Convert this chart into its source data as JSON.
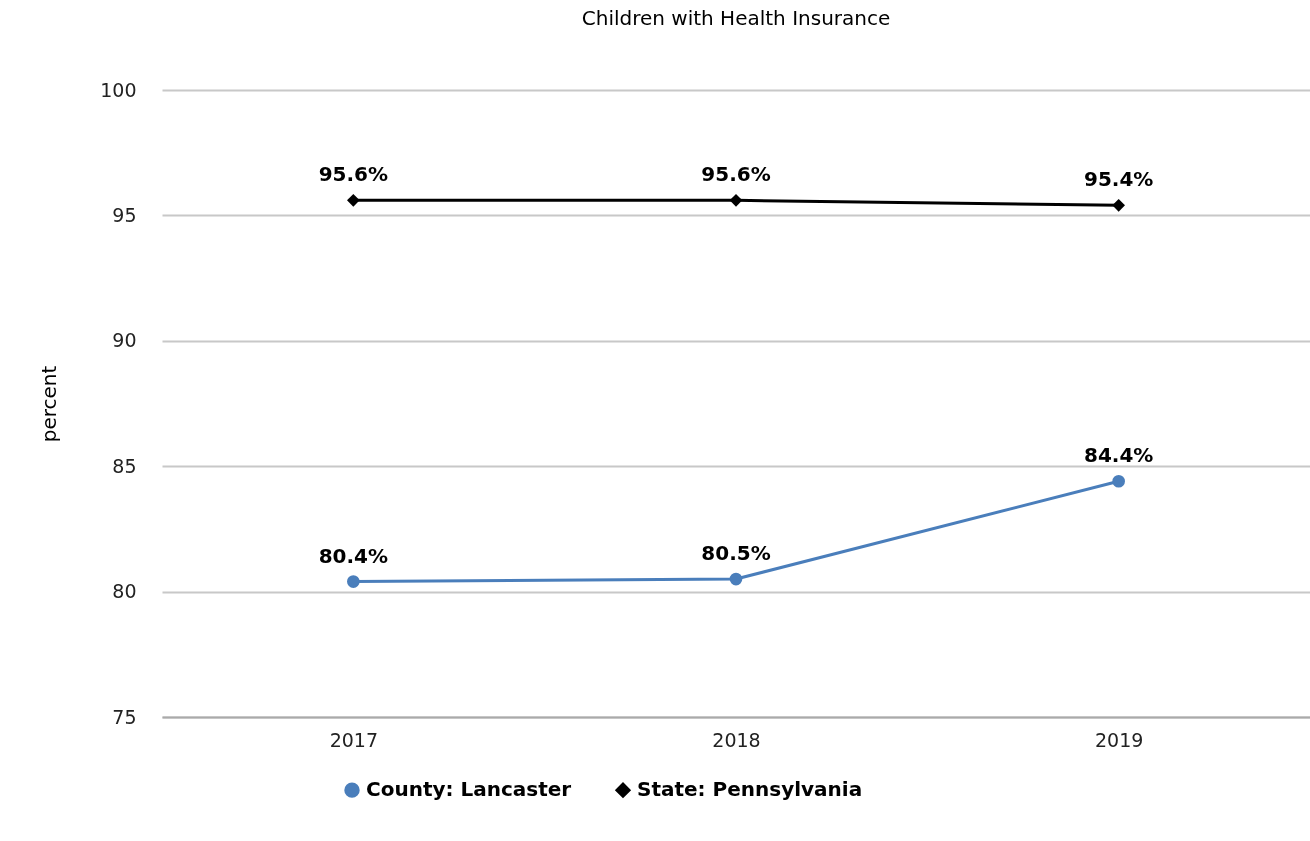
{
  "chart_data": {
    "type": "line",
    "title": "Children with Health Insurance",
    "ylabel": "percent",
    "categories": [
      "2017",
      "2018",
      "2019"
    ],
    "series": [
      {
        "name": "County: Lancaster",
        "color": "#4a7ebb",
        "marker": "circle",
        "values": [
          80.4,
          80.5,
          84.4
        ],
        "value_labels": [
          "80.4%",
          "80.5%",
          "84.4%"
        ]
      },
      {
        "name": "State: Pennsylvania",
        "color": "#000000",
        "marker": "diamond",
        "values": [
          95.6,
          95.6,
          95.4
        ],
        "value_labels": [
          "95.6%",
          "95.6%",
          "95.4%"
        ]
      }
    ],
    "ylim": [
      75,
      100
    ],
    "yticks": [
      75,
      80,
      85,
      90,
      95,
      100
    ],
    "grid": "y",
    "legend": "bottom",
    "line_style": "solid"
  }
}
